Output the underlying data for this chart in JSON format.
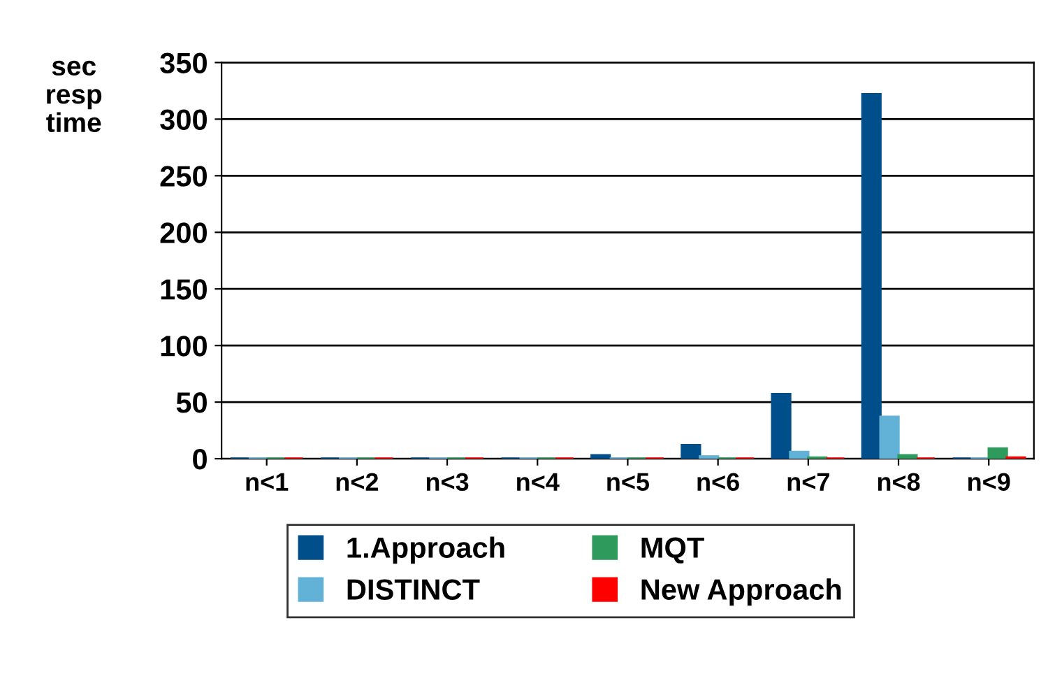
{
  "chart_data": {
    "type": "bar",
    "ylabel": "sec\nresp\ntime",
    "categories": [
      "n<1",
      "n<2",
      "n<3",
      "n<4",
      "n<5",
      "n<6",
      "n<7",
      "n<8",
      "n<9"
    ],
    "series": [
      {
        "name": "1.Approach",
        "color": "#004f8b",
        "values": [
          0,
          0,
          0,
          0,
          3,
          12,
          57,
          322,
          0
        ]
      },
      {
        "name": "DISTINCT",
        "color": "#62b1d6",
        "values": [
          0,
          0,
          0,
          0,
          0,
          2,
          6,
          37,
          0
        ]
      },
      {
        "name": "MQT",
        "color": "#2e9a5c",
        "values": [
          0,
          0,
          0,
          0,
          0,
          0,
          1,
          3,
          9
        ]
      },
      {
        "name": "New Approach",
        "color": "#ff0000",
        "values": [
          0,
          0,
          0,
          0,
          0,
          0,
          0,
          0,
          1
        ]
      }
    ],
    "ylim": [
      0,
      350
    ],
    "yticks": [
      0,
      50,
      100,
      150,
      200,
      250,
      300,
      350
    ],
    "grid": "y",
    "legend": "bottom"
  }
}
